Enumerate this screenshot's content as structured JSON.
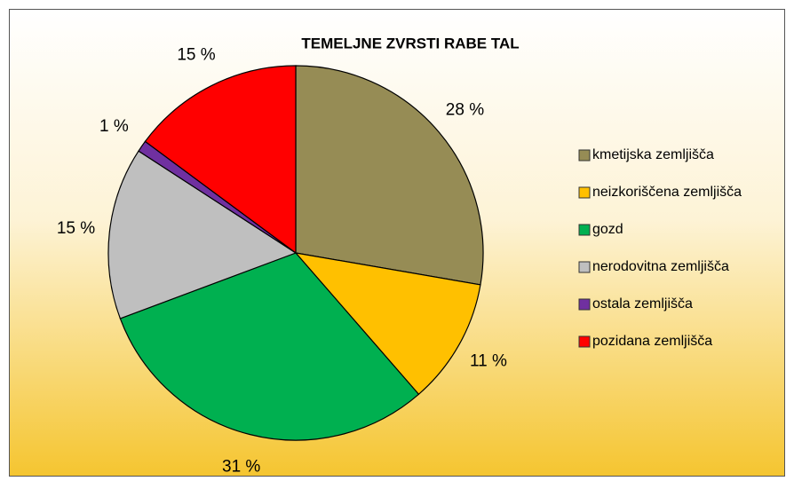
{
  "chart_data": {
    "type": "pie",
    "title": "TEMELJNE ZVRSTI RABE TAL",
    "categories": [
      "kmetijska zemljišča",
      "neizkoriščena zemljišča",
      "gozd",
      "nerodovitna zemljišča",
      "ostala zemljišča",
      "pozidana zemljišča"
    ],
    "values": [
      28,
      11,
      31,
      15,
      1,
      15
    ],
    "value_labels": [
      "28 %",
      "11 %",
      "31 %",
      "15 %",
      "1 %",
      "15 %"
    ],
    "colors": [
      "#968c55",
      "#ffc000",
      "#00b050",
      "#bfbfbf",
      "#7030a0",
      "#ff0000"
    ],
    "legend": "right"
  }
}
